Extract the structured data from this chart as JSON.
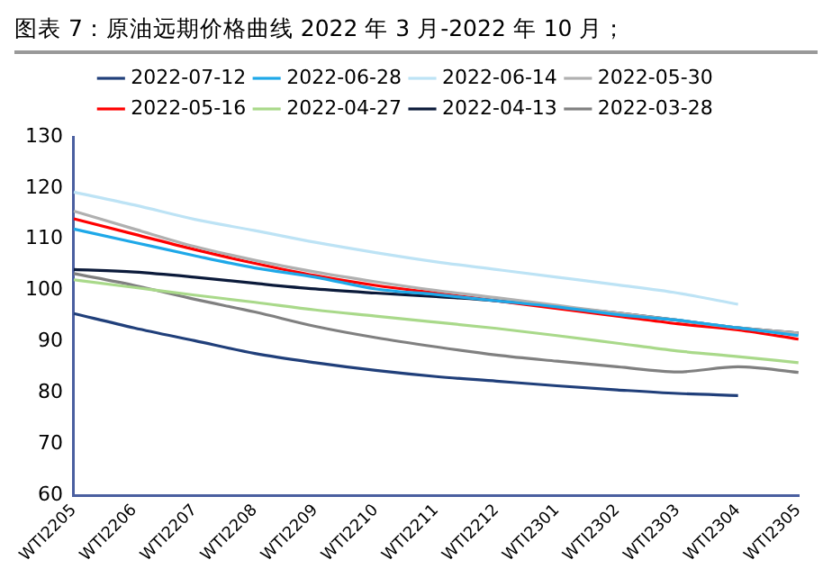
{
  "chart_data": {
    "type": "line",
    "title": "图表 7：原油远期价格曲线 2022 年 3 月-2022 年 10 月；",
    "categories": [
      "WTI2205",
      "WTI2206",
      "WTI2207",
      "WTI2208",
      "WTI2209",
      "WTI2210",
      "WTI2211",
      "WTI2212",
      "WTI2301",
      "WTI2302",
      "WTI2303",
      "WTI2304",
      "WTI2305"
    ],
    "series": [
      {
        "name": "2022-07-12",
        "color": "#203f7a",
        "values": [
          95.5,
          92.7,
          90.2,
          87.7,
          85.9,
          84.4,
          83.2,
          82.3,
          81.4,
          80.6,
          79.9,
          79.5,
          null
        ]
      },
      {
        "name": "2022-06-28",
        "color": "#1ea8e8",
        "values": [
          112,
          109.4,
          106.8,
          104.4,
          102.6,
          100.3,
          99.2,
          98,
          96.8,
          95.3,
          94.2,
          92.7,
          91.2
        ]
      },
      {
        "name": "2022-06-14",
        "color": "#bde3f5",
        "values": [
          119.2,
          116.7,
          113.9,
          111.7,
          109.4,
          107.4,
          105.6,
          104.1,
          102.6,
          101.1,
          99.5,
          97.3,
          null
        ]
      },
      {
        "name": "2022-05-30",
        "color": "#b0b0b0",
        "values": [
          115.5,
          112,
          108.6,
          105.9,
          103.6,
          101.7,
          100,
          98.6,
          97.1,
          95.6,
          94.2,
          92.7,
          91.7
        ]
      },
      {
        "name": "2022-05-16",
        "color": "#ff0000",
        "values": [
          114,
          111,
          108,
          105.3,
          102.9,
          101,
          99.5,
          98,
          96.5,
          95,
          93.5,
          92.3,
          90.5
        ]
      },
      {
        "name": "2022-04-27",
        "color": "#a9d98a",
        "values": [
          102.1,
          100.6,
          99.1,
          97.7,
          96.2,
          95,
          93.8,
          92.6,
          91.2,
          89.7,
          88.2,
          87.1,
          85.9
        ]
      },
      {
        "name": "2022-04-13",
        "color": "#0b1a3a",
        "values": [
          104.1,
          103.6,
          102.6,
          101.4,
          100.3,
          99.5,
          98.8,
          98,
          96.8,
          95.6,
          94.2,
          92.7,
          91.7
        ]
      },
      {
        "name": "2022-03-28",
        "color": "#808080",
        "values": [
          103.3,
          101,
          98.3,
          95.8,
          93,
          90.8,
          89,
          87.4,
          86.2,
          85.1,
          84.1,
          85.1,
          84
        ]
      }
    ],
    "ylim": [
      60,
      130
    ],
    "yticks": [
      60,
      70,
      80,
      90,
      100,
      110,
      120,
      130
    ],
    "legend": "top",
    "marker": "none",
    "line_style": "solid",
    "grid": false
  }
}
